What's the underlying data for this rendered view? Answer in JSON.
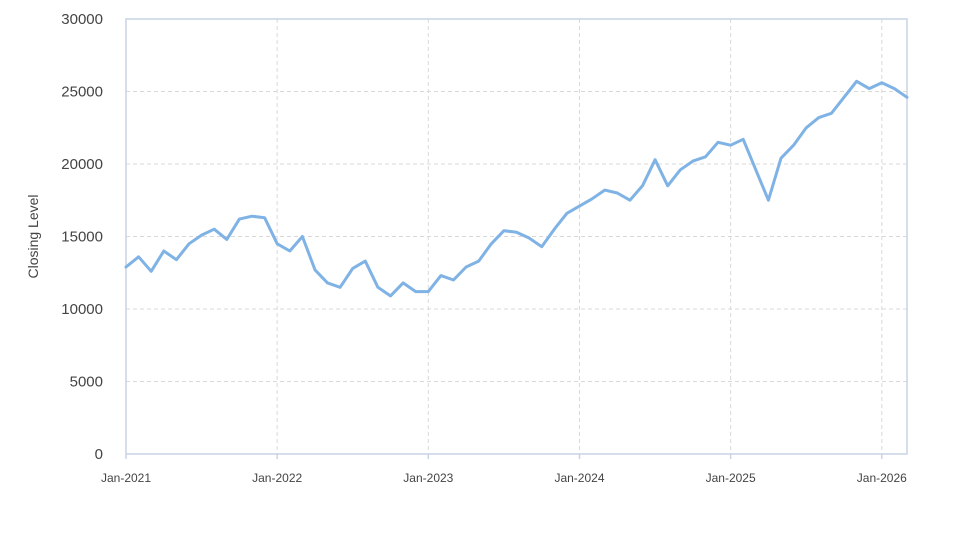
{
  "chart_data": {
    "type": "line",
    "ylabel": "Closing Level",
    "xlabel": "",
    "ylim": [
      0,
      30000
    ],
    "yticks": [
      0,
      5000,
      10000,
      15000,
      20000,
      25000,
      30000
    ],
    "xlim": [
      "2021-01",
      "2026-03"
    ],
    "xticks": [
      {
        "label": "Jan-2021",
        "date": "2021-01"
      },
      {
        "label": "Jan-2022",
        "date": "2022-01"
      },
      {
        "label": "Jan-2023",
        "date": "2023-01"
      },
      {
        "label": "Jan-2024",
        "date": "2024-01"
      },
      {
        "label": "Jan-2025",
        "date": "2025-01"
      },
      {
        "label": "Jan-2026",
        "date": "2026-01"
      }
    ],
    "grid": true,
    "line_color": "#7fb2e5",
    "series": [
      {
        "x": [
          "2021-01",
          "2021-02",
          "2021-03",
          "2021-04",
          "2021-05",
          "2021-06",
          "2021-07",
          "2021-08",
          "2021-09",
          "2021-10",
          "2021-11",
          "2021-12",
          "2022-01",
          "2022-02",
          "2022-03",
          "2022-04",
          "2022-05",
          "2022-06",
          "2022-07",
          "2022-08",
          "2022-09",
          "2022-10",
          "2022-11",
          "2022-12",
          "2023-01",
          "2023-02",
          "2023-03",
          "2023-04",
          "2023-05",
          "2023-06",
          "2023-07",
          "2023-08",
          "2023-09",
          "2023-10",
          "2023-11",
          "2023-12",
          "2024-01",
          "2024-02",
          "2024-03",
          "2024-04",
          "2024-05",
          "2024-06",
          "2024-07",
          "2024-08",
          "2024-09",
          "2024-10",
          "2024-11",
          "2024-12",
          "2025-01",
          "2025-02",
          "2025-03",
          "2025-04",
          "2025-05",
          "2025-06",
          "2025-07",
          "2025-08",
          "2025-09",
          "2025-10",
          "2025-11",
          "2025-12",
          "2026-01",
          "2026-02",
          "2026-03"
        ],
        "values": [
          12900,
          13600,
          12600,
          14000,
          13400,
          14500,
          15100,
          15500,
          14800,
          16200,
          16400,
          16300,
          14500,
          14000,
          15000,
          12700,
          11800,
          11500,
          12800,
          13300,
          11500,
          10900,
          11800,
          11200,
          11200,
          12300,
          12000,
          12900,
          13300,
          14500,
          15400,
          15300,
          14900,
          14300,
          15500,
          16600,
          17100,
          17600,
          18200,
          18000,
          17500,
          18500,
          20300,
          18500,
          19600,
          20200,
          20500,
          21500,
          21300,
          21700,
          19600,
          17500,
          20400,
          21300,
          22500,
          23200,
          23500,
          24600,
          25700,
          25200,
          25600,
          25200,
          24600
        ]
      }
    ]
  }
}
